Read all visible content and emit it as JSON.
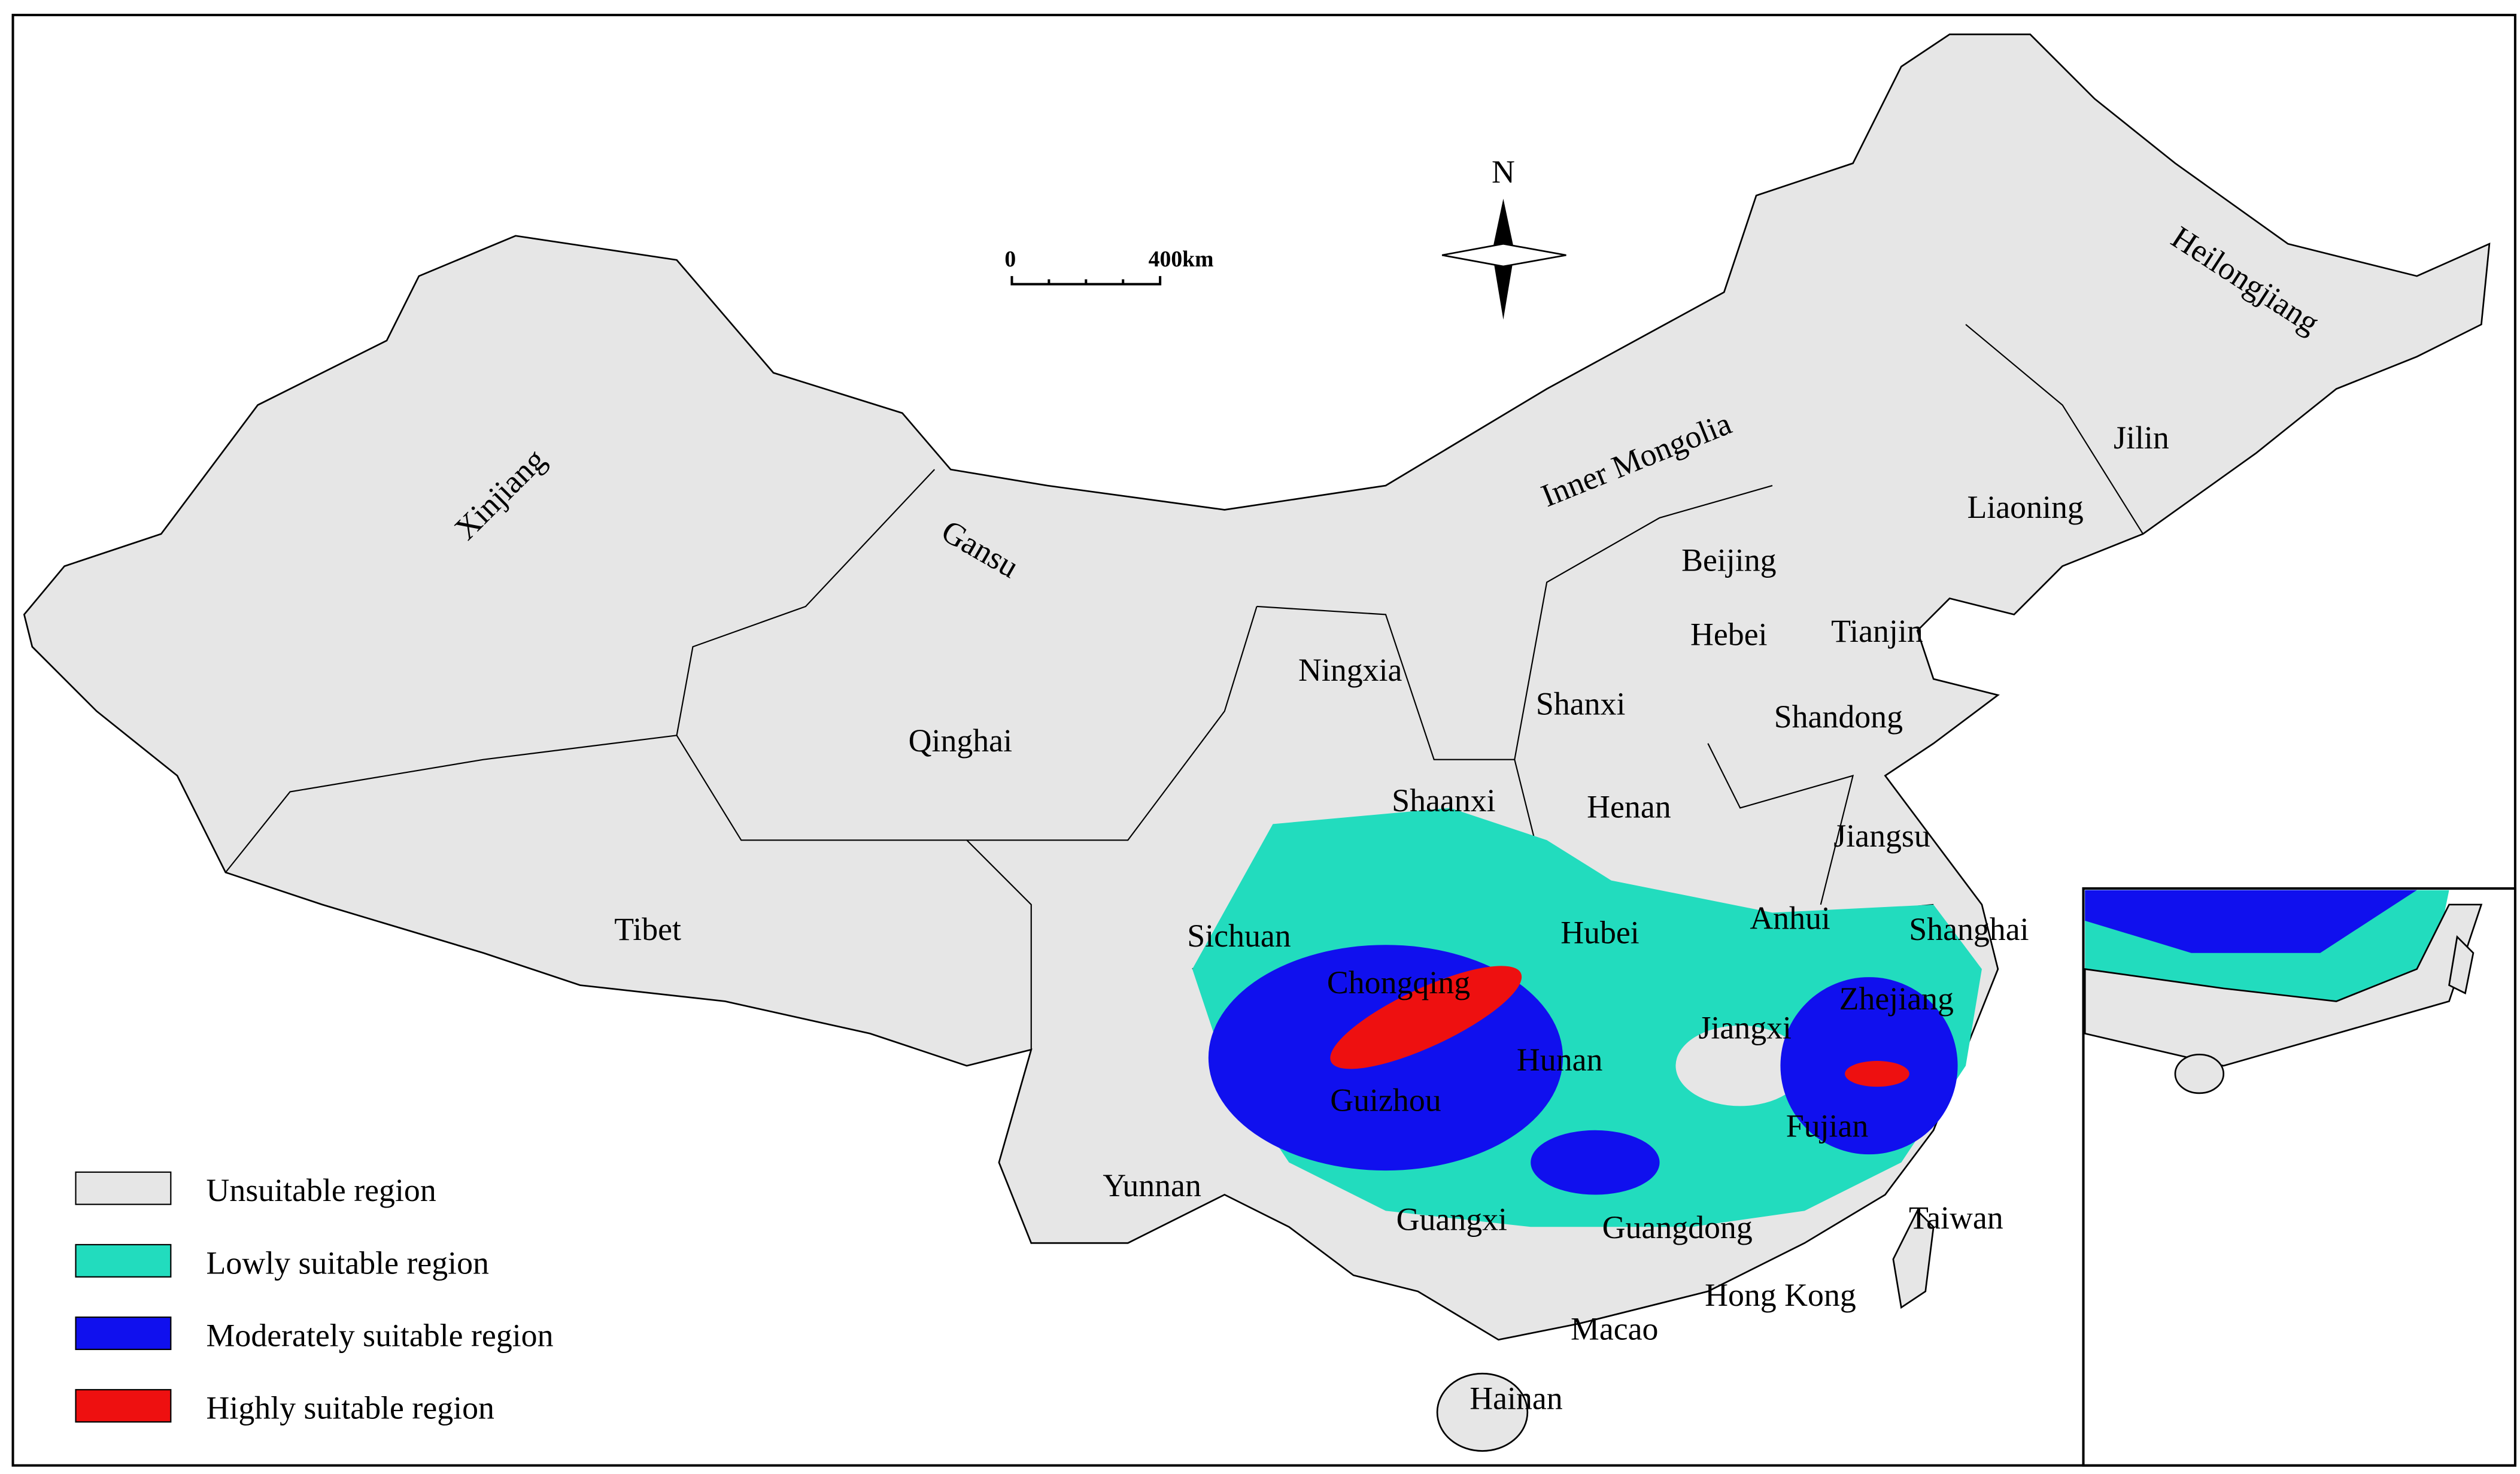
{
  "scale_bar": {
    "start": "0",
    "end": "400km"
  },
  "north_arrow": "N",
  "provinces": [
    "Xinjiang",
    "Tibet",
    "Qinghai",
    "Gansu",
    "Inner Mongolia",
    "Heilongjiang",
    "Jilin",
    "Liaoning",
    "Beijing",
    "Tianjin",
    "Hebei",
    "Shanxi",
    "Shandong",
    "Ningxia",
    "Shaanxi",
    "Henan",
    "Jiangsu",
    "Anhui",
    "Shanghai",
    "Hubei",
    "Sichuan",
    "Chongqing",
    "Zhejiang",
    "Jiangxi",
    "Hunan",
    "Guizhou",
    "Fujian",
    "Yunnan",
    "Guangxi",
    "Guangdong",
    "Taiwan",
    "Hong Kong",
    "Macao",
    "Hainan"
  ],
  "legend": [
    {
      "label": "Unsuitable region",
      "color": "#e6e6e6"
    },
    {
      "label": "Lowly suitable region",
      "color": "#22dcbe"
    },
    {
      "label": "Moderately suitable region",
      "color": "#1010ee"
    },
    {
      "label": "Highly suitable region",
      "color": "#ee1010"
    }
  ]
}
